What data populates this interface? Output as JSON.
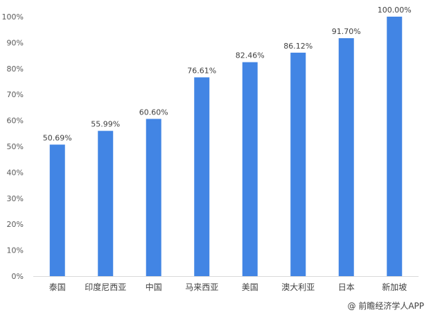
{
  "chart_data": {
    "type": "bar",
    "categories": [
      "泰国",
      "印度尼西亚",
      "中国",
      "马来西亚",
      "美国",
      "澳大利亚",
      "日本",
      "新加坡"
    ],
    "values": [
      50.69,
      55.99,
      60.6,
      76.61,
      82.46,
      86.12,
      91.7,
      100.0
    ],
    "data_labels": [
      "50.69%",
      "55.99%",
      "60.60%",
      "76.61%",
      "82.46%",
      "86.12%",
      "91.70%",
      "100.00%"
    ],
    "y_ticks": [
      "0%",
      "10%",
      "20%",
      "30%",
      "40%",
      "50%",
      "60%",
      "70%",
      "80%",
      "90%",
      "100%"
    ],
    "ylim": [
      0,
      100
    ],
    "grid": false,
    "bar_color": "#4285E4",
    "axis_color": "#D9D9D9"
  },
  "watermark": "@ 前瞻经济学人APP"
}
